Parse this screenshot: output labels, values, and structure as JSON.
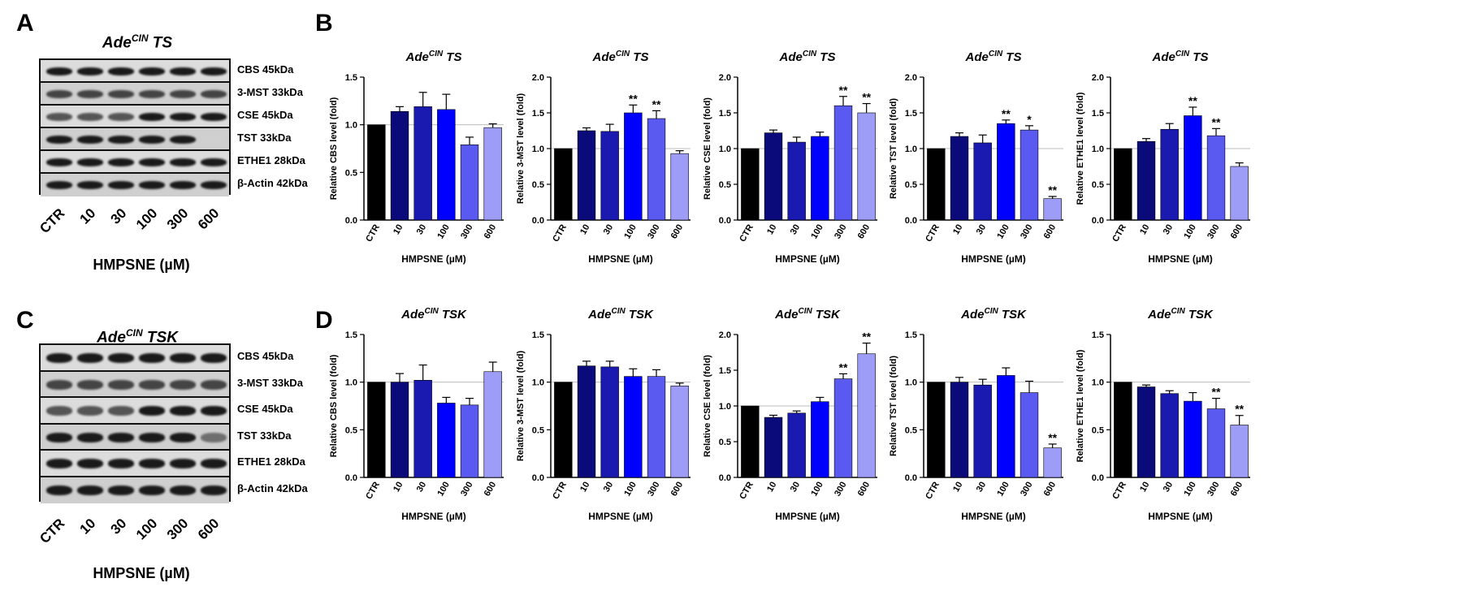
{
  "panel_letters": {
    "A": "A",
    "B": "B",
    "C": "C",
    "D": "D"
  },
  "blots": [
    {
      "title": {
        "gene": "Ade",
        "sup": "CIN",
        "suffix": " TS"
      },
      "proteins": [
        "CBS 45kDa",
        "3-MST 33kDa",
        "CSE 45kDa",
        "TST 33kDa",
        "ETHE1 28kDa",
        "β-Actin 42kDa"
      ],
      "lanes": [
        "CTR",
        "10",
        "30",
        "100",
        "300",
        "600"
      ],
      "xlabel": "HMPSNE (µM)"
    },
    {
      "title": {
        "gene": "Ade",
        "sup": "CIN",
        "suffix": " TSK"
      },
      "proteins": [
        "CBS 45kDa",
        "3-MST 33kDa",
        "CSE 45kDa",
        "TST 33kDa",
        "ETHE1 28kDa",
        "β-Actin 42kDa"
      ],
      "lanes": [
        "CTR",
        "10",
        "30",
        "100",
        "300",
        "600"
      ],
      "xlabel": "HMPSNE (µM)"
    }
  ],
  "colors": [
    "#000000",
    "#0a0a7a",
    "#1a1ab0",
    "#0000ff",
    "#5a5af0",
    "#9d9df7"
  ],
  "chart_data": [
    {
      "type": "bar",
      "title": "AdeCIN TS",
      "title_parts": {
        "gene": "Ade",
        "sup": "CIN",
        "suffix": " TS"
      },
      "categories": [
        "CTR",
        "10",
        "30",
        "100",
        "300",
        "600"
      ],
      "values": [
        1.0,
        1.14,
        1.19,
        1.16,
        0.79,
        0.97
      ],
      "errors": [
        0,
        0.05,
        0.15,
        0.16,
        0.08,
        0.04
      ],
      "sig": [
        "",
        "",
        "",
        "",
        "",
        ""
      ],
      "ylabel": "Relative CBS level (fold)",
      "xlabel": "HMPSNE (µM)",
      "ylim": [
        0,
        1.5
      ],
      "yticks": [
        "0.0",
        "0.5",
        "1.0",
        "1.5"
      ],
      "tickvals": [
        0,
        0.5,
        1.0,
        1.5
      ]
    },
    {
      "type": "bar",
      "title": "AdeCIN TS",
      "title_parts": {
        "gene": "Ade",
        "sup": "CIN",
        "suffix": " TS"
      },
      "categories": [
        "CTR",
        "10",
        "30",
        "100",
        "300",
        "600"
      ],
      "values": [
        1.0,
        1.25,
        1.24,
        1.5,
        1.42,
        0.93
      ],
      "errors": [
        0,
        0.04,
        0.1,
        0.11,
        0.11,
        0.04
      ],
      "sig": [
        "",
        "",
        "",
        "**",
        "**",
        ""
      ],
      "ylabel": "Relative 3-MST level (fold)",
      "xlabel": "HMPSNE (µM)",
      "ylim": [
        0,
        2.0
      ],
      "yticks": [
        "0.0",
        "0.5",
        "1.0",
        "1.5",
        "2.0"
      ],
      "tickvals": [
        0,
        0.5,
        1.0,
        1.5,
        2.0
      ]
    },
    {
      "type": "bar",
      "title": "AdeCIN TS",
      "title_parts": {
        "gene": "Ade",
        "sup": "CIN",
        "suffix": " TS"
      },
      "categories": [
        "CTR",
        "10",
        "30",
        "100",
        "300",
        "600"
      ],
      "values": [
        1.0,
        1.22,
        1.09,
        1.17,
        1.6,
        1.5
      ],
      "errors": [
        0,
        0.04,
        0.07,
        0.06,
        0.13,
        0.13
      ],
      "sig": [
        "",
        "",
        "",
        "",
        "**",
        "**"
      ],
      "ylabel": "Relative CSE level (fold)",
      "xlabel": "HMPSNE (µM)",
      "ylim": [
        0,
        2.0
      ],
      "yticks": [
        "0.0",
        "0.5",
        "1.0",
        "1.5",
        "2.0"
      ],
      "tickvals": [
        0,
        0.5,
        1.0,
        1.5,
        2.0
      ]
    },
    {
      "type": "bar",
      "title": "AdeCIN TS",
      "title_parts": {
        "gene": "Ade",
        "sup": "CIN",
        "suffix": " TS"
      },
      "categories": [
        "CTR",
        "10",
        "30",
        "100",
        "300",
        "600"
      ],
      "values": [
        1.0,
        1.17,
        1.08,
        1.35,
        1.26,
        0.3
      ],
      "errors": [
        0,
        0.05,
        0.11,
        0.05,
        0.06,
        0.03
      ],
      "sig": [
        "",
        "",
        "",
        "**",
        "*",
        "**"
      ],
      "ylabel": "Relative TST level (fold)",
      "xlabel": "HMPSNE (µM)",
      "ylim": [
        0,
        2.0
      ],
      "yticks": [
        "0.0",
        "0.5",
        "1.0",
        "1.5",
        "2.0"
      ],
      "tickvals": [
        0,
        0.5,
        1.0,
        1.5,
        2.0
      ]
    },
    {
      "type": "bar",
      "title": "AdeCIN TS",
      "title_parts": {
        "gene": "Ade",
        "sup": "CIN",
        "suffix": " TS"
      },
      "categories": [
        "CTR",
        "10",
        "30",
        "100",
        "300",
        "600"
      ],
      "values": [
        1.0,
        1.1,
        1.27,
        1.46,
        1.18,
        0.75
      ],
      "errors": [
        0,
        0.04,
        0.08,
        0.12,
        0.1,
        0.05
      ],
      "sig": [
        "",
        "",
        "",
        "**",
        "**",
        ""
      ],
      "ylabel": "Relative ETHE1 level (fold)",
      "xlabel": "HMPSNE (µM)",
      "ylim": [
        0,
        2.0
      ],
      "yticks": [
        "0.0",
        "0.5",
        "1.0",
        "1.5",
        "2.0"
      ],
      "tickvals": [
        0,
        0.5,
        1.0,
        1.5,
        2.0
      ]
    },
    {
      "type": "bar",
      "title": "AdeCIN TSK",
      "title_parts": {
        "gene": "Ade",
        "sup": "CIN",
        "suffix": " TSK"
      },
      "categories": [
        "CTR",
        "10",
        "30",
        "100",
        "300",
        "600"
      ],
      "values": [
        1.0,
        1.0,
        1.02,
        0.78,
        0.76,
        1.11
      ],
      "errors": [
        0,
        0.09,
        0.16,
        0.06,
        0.07,
        0.1
      ],
      "sig": [
        "",
        "",
        "",
        "",
        "",
        ""
      ],
      "ylabel": "Relative CBS level (fold)",
      "xlabel": "HMPSNE (µM)",
      "ylim": [
        0,
        1.5
      ],
      "yticks": [
        "0.0",
        "0.5",
        "1.0",
        "1.5"
      ],
      "tickvals": [
        0,
        0.5,
        1.0,
        1.5
      ]
    },
    {
      "type": "bar",
      "title": "AdeCIN TSK",
      "title_parts": {
        "gene": "Ade",
        "sup": "CIN",
        "suffix": " TSK"
      },
      "categories": [
        "CTR",
        "10",
        "30",
        "100",
        "300",
        "600"
      ],
      "values": [
        1.0,
        1.17,
        1.16,
        1.06,
        1.06,
        0.96
      ],
      "errors": [
        0,
        0.05,
        0.06,
        0.08,
        0.07,
        0.03
      ],
      "sig": [
        "",
        "",
        "",
        "",
        "",
        ""
      ],
      "ylabel": "Relative 3-MST level (fold)",
      "xlabel": "HMPSNE (µM)",
      "ylim": [
        0,
        1.5
      ],
      "yticks": [
        "0.0",
        "0.5",
        "1.0",
        "1.5"
      ],
      "tickvals": [
        0,
        0.5,
        1.0,
        1.5
      ]
    },
    {
      "type": "bar",
      "title": "AdeCIN TSK",
      "title_parts": {
        "gene": "Ade",
        "sup": "CIN",
        "suffix": " TSK"
      },
      "categories": [
        "CTR",
        "10",
        "30",
        "100",
        "300",
        "600"
      ],
      "values": [
        1.0,
        0.84,
        0.9,
        1.06,
        1.38,
        1.73
      ],
      "errors": [
        0,
        0.03,
        0.03,
        0.06,
        0.07,
        0.15
      ],
      "sig": [
        "",
        "",
        "",
        "",
        "**",
        "**"
      ],
      "ylabel": "Relative CSE level (fold)",
      "xlabel": "HMPSNE (µM)",
      "ylim": [
        0,
        2.0
      ],
      "yticks": [
        "0.0",
        "0.5",
        "1.0",
        "1.5",
        "2.0"
      ],
      "tickvals": [
        0,
        0.5,
        1.0,
        1.5,
        2.0
      ]
    },
    {
      "type": "bar",
      "title": "AdeCIN TSK",
      "title_parts": {
        "gene": "Ade",
        "sup": "CIN",
        "suffix": " TSK"
      },
      "categories": [
        "CTR",
        "10",
        "30",
        "100",
        "300",
        "600"
      ],
      "values": [
        1.0,
        1.0,
        0.97,
        1.07,
        0.89,
        0.31
      ],
      "errors": [
        0,
        0.05,
        0.06,
        0.08,
        0.12,
        0.04
      ],
      "sig": [
        "",
        "",
        "",
        "",
        "",
        "**"
      ],
      "ylabel": "Relative TST level (fold)",
      "xlabel": "HMPSNE (µM)",
      "ylim": [
        0,
        1.5
      ],
      "yticks": [
        "0.0",
        "0.5",
        "1.0",
        "1.5"
      ],
      "tickvals": [
        0,
        0.5,
        1.0,
        1.5
      ]
    },
    {
      "type": "bar",
      "title": "AdeCIN TSK",
      "title_parts": {
        "gene": "Ade",
        "sup": "CIN",
        "suffix": " TSK"
      },
      "categories": [
        "CTR",
        "10",
        "30",
        "100",
        "300",
        "600"
      ],
      "values": [
        1.0,
        0.95,
        0.88,
        0.8,
        0.72,
        0.55
      ],
      "errors": [
        0,
        0.02,
        0.03,
        0.09,
        0.11,
        0.1
      ],
      "sig": [
        "",
        "",
        "",
        "",
        "**",
        "**"
      ],
      "ylabel": "Relative ETHE1 level (fold)",
      "xlabel": "HMPSNE (µM)",
      "ylim": [
        0,
        1.5
      ],
      "yticks": [
        "0.0",
        "0.5",
        "1.0",
        "1.5"
      ],
      "tickvals": [
        0,
        0.5,
        1.0,
        1.5
      ]
    }
  ]
}
